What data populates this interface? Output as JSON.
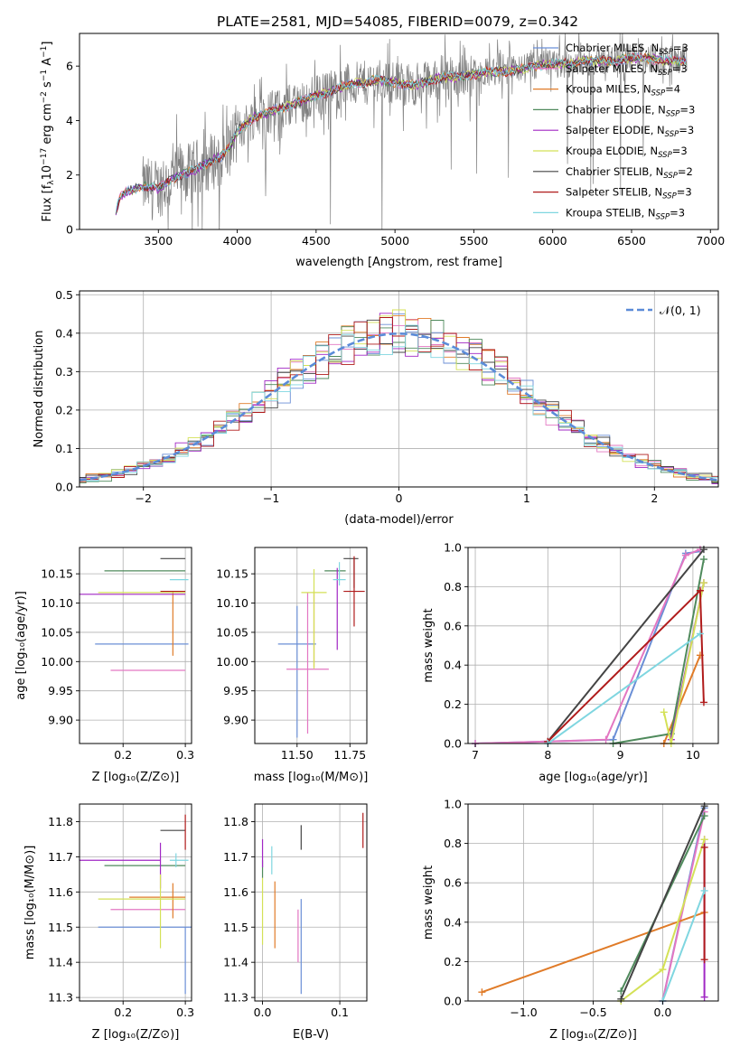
{
  "title": "PLATE=2581, MJD=54085, FIBERID=0079, z=0.342",
  "colors": {
    "Chabrier MILES": "#6b8fd6",
    "Salpeter MILES": "#e377c2",
    "Kroupa MILES": "#e07b28",
    "Chabrier ELODIE": "#4f8a5c",
    "Salpeter ELODIE": "#a127c4",
    "Kroupa ELODIE": "#d4e157",
    "Chabrier STELIB": "#444444",
    "Salpeter STELIB": "#b01b1b",
    "Kroupa STELIB": "#7fd6e0",
    "data": "#808080",
    "normal": "#5b8bd8"
  },
  "chart_data": [
    {
      "type": "line",
      "id": "spectrum",
      "xlabel": "wavelength [Angstrom, rest frame]",
      "ylabel": "Flux [f_λ 10^-17 erg cm^-2 s^-1 A^-1]",
      "xlim": [
        3000,
        7050
      ],
      "ylim": [
        0,
        7.2
      ],
      "xticks": [
        3500,
        4000,
        4500,
        5000,
        5500,
        6000,
        6500,
        7000
      ],
      "yticks": [
        0,
        2,
        4,
        6
      ],
      "grid": false,
      "legend_position": "top-right",
      "legend": [
        {
          "label": "Chabrier MILES, N",
          "sub": "SSP",
          "suffix": "=3",
          "model": "Chabrier MILES"
        },
        {
          "label": "Salpeter MILES, N",
          "sub": "SSP",
          "suffix": "=3",
          "model": "Salpeter MILES"
        },
        {
          "label": "Kroupa MILES, N",
          "sub": "SSP",
          "suffix": "=4",
          "model": "Kroupa MILES"
        },
        {
          "label": "Chabrier ELODIE, N",
          "sub": "SSP",
          "suffix": "=3",
          "model": "Chabrier ELODIE"
        },
        {
          "label": "Salpeter ELODIE, N",
          "sub": "SSP",
          "suffix": "=3",
          "model": "Salpeter ELODIE"
        },
        {
          "label": "Kroupa ELODIE, N",
          "sub": "SSP",
          "suffix": "=3",
          "model": "Kroupa ELODIE"
        },
        {
          "label": "Chabrier STELIB, N",
          "sub": "SSP",
          "suffix": "=2",
          "model": "Chabrier STELIB"
        },
        {
          "label": "Salpeter STELIB, N",
          "sub": "SSP",
          "suffix": "=3",
          "model": "Salpeter STELIB"
        },
        {
          "label": "Kroupa STELIB, N",
          "sub": "SSP",
          "suffix": "=3",
          "model": "Kroupa STELIB"
        }
      ],
      "model_continuum": {
        "x": [
          3200,
          3260,
          3300,
          3400,
          3500,
          3600,
          3700,
          3800,
          3900,
          3950,
          4000,
          4100,
          4200,
          4300,
          4400,
          4500,
          4600,
          4700,
          4800,
          4900,
          5000,
          5100,
          5200,
          5300,
          5400,
          5500,
          5600,
          5700,
          5800,
          5900,
          6000,
          6100,
          6200,
          6300,
          6400,
          6500,
          6600,
          6700,
          6850
        ],
        "y": [
          0,
          1.2,
          1.4,
          1.6,
          1.5,
          1.9,
          2.1,
          2.4,
          2.7,
          3.0,
          3.6,
          4.1,
          4.3,
          4.5,
          4.7,
          4.9,
          5.1,
          5.3,
          5.4,
          5.5,
          5.4,
          5.3,
          5.4,
          5.6,
          5.6,
          5.7,
          5.8,
          5.8,
          5.9,
          6.0,
          6.1,
          6.1,
          6.2,
          6.2,
          6.2,
          6.3,
          6.3,
          6.2,
          6.2
        ]
      },
      "data_range": [
        3400,
        6850
      ]
    },
    {
      "type": "line",
      "id": "residuals",
      "xlabel": "(data-model)/error",
      "ylabel": "Normed distribution",
      "xlim": [
        -2.5,
        2.5
      ],
      "ylim": [
        0,
        0.51
      ],
      "xticks": [
        -2,
        -1,
        0,
        1,
        2
      ],
      "yticks": [
        0.0,
        0.1,
        0.2,
        0.3,
        0.4,
        0.5
      ],
      "grid": true,
      "legend_position": "top-right",
      "legend": [
        {
          "label": "𝒩(0, 1)"
        }
      ],
      "bin_width": 0.1
    },
    {
      "type": "scatter",
      "id": "age-vs-Z",
      "xlabel": "Z [log10(Z/Z⊙)]",
      "ylabel": "age  [log10(age/yr)]",
      "xlim": [
        0.13,
        0.31
      ],
      "ylim": [
        9.86,
        10.195
      ],
      "xticks": [
        0.2,
        0.3
      ],
      "yticks": [
        9.9,
        9.95,
        10.0,
        10.05,
        10.1,
        10.15
      ],
      "grid": true,
      "points": [
        {
          "model": "Chabrier MILES",
          "x": 0.255,
          "xerr": [
            0.1,
            0.05
          ],
          "y": 10.03,
          "yerr": [
            0,
            0
          ]
        },
        {
          "model": "Salpeter MILES",
          "x": 0.24,
          "xerr": [
            0.06,
            0.06
          ],
          "y": 9.985,
          "yerr": [
            0,
            0
          ]
        },
        {
          "model": "Kroupa MILES",
          "x": 0.28,
          "xerr": [
            0.0,
            0.0
          ],
          "y": 10.06,
          "yerr": [
            0.05,
            0.06
          ]
        },
        {
          "model": "Chabrier ELODIE",
          "x": 0.24,
          "xerr": [
            0.07,
            0.06
          ],
          "y": 10.155,
          "yerr": [
            0.0,
            0.0
          ]
        },
        {
          "model": "Salpeter ELODIE",
          "x": 0.2,
          "xerr": [
            0.1,
            0.1
          ],
          "y": 10.115,
          "yerr": [
            0,
            0
          ]
        },
        {
          "model": "Kroupa ELODIE",
          "x": 0.23,
          "xerr": [
            0.07,
            0.07
          ],
          "y": 10.118,
          "yerr": [
            0,
            0
          ]
        },
        {
          "model": "Chabrier STELIB",
          "x": 0.28,
          "xerr": [
            0.02,
            0.02
          ],
          "y": 10.176,
          "yerr": [
            0,
            0
          ]
        },
        {
          "model": "Salpeter STELIB",
          "x": 0.28,
          "xerr": [
            0.02,
            0.02
          ],
          "y": 10.12,
          "yerr": [
            0.0,
            0.0
          ]
        },
        {
          "model": "Kroupa STELIB",
          "x": 0.285,
          "xerr": [
            0.01,
            0.02
          ],
          "y": 10.14,
          "yerr": [
            0,
            0
          ]
        }
      ]
    },
    {
      "type": "scatter",
      "id": "age-vs-mass",
      "xlabel": "mass [log10(M/M⊙)]",
      "ylabel": "",
      "xlim": [
        11.3,
        11.83
      ],
      "ylim": [
        9.86,
        10.195
      ],
      "xticks": [
        11.5,
        11.75
      ],
      "yticks": [
        9.9,
        9.95,
        10.0,
        10.05,
        10.1,
        10.15
      ],
      "grid": true,
      "points": [
        {
          "model": "Chabrier MILES",
          "x": 11.5,
          "xerr": [
            0.09,
            0.09
          ],
          "y": 10.03,
          "yerr": [
            0.16,
            0.065
          ]
        },
        {
          "model": "Salpeter MILES",
          "x": 11.55,
          "xerr": [
            0.1,
            0.1
          ],
          "y": 9.987,
          "yerr": [
            0.11,
            0.13
          ]
        },
        {
          "model": "Kroupa MILES",
          "x": 11.58,
          "xerr": [
            0,
            0
          ],
          "y": 10.06,
          "yerr": [
            0.07,
            0.06
          ]
        },
        {
          "model": "Chabrier ELODIE",
          "x": 11.68,
          "xerr": [
            0.05,
            0.05
          ],
          "y": 10.155,
          "yerr": [
            0,
            0
          ]
        },
        {
          "model": "Salpeter ELODIE",
          "x": 11.69,
          "xerr": [
            0,
            0
          ],
          "y": 10.1,
          "yerr": [
            0.08,
            0.06
          ]
        },
        {
          "model": "Kroupa ELODIE",
          "x": 11.58,
          "xerr": [
            0.06,
            0.06
          ],
          "y": 10.118,
          "yerr": [
            0.13,
            0.04
          ]
        },
        {
          "model": "Chabrier STELIB",
          "x": 11.77,
          "xerr": [
            0.05,
            0.02
          ],
          "y": 10.176,
          "yerr": [
            0.05,
            0
          ]
        },
        {
          "model": "Salpeter STELIB",
          "x": 11.77,
          "xerr": [
            0.05,
            0.05
          ],
          "y": 10.12,
          "yerr": [
            0.06,
            0.06
          ]
        },
        {
          "model": "Kroupa STELIB",
          "x": 11.7,
          "xerr": [
            0.03,
            0.03
          ],
          "y": 10.14,
          "yerr": [
            0.01,
            0.03
          ]
        }
      ]
    },
    {
      "type": "line",
      "id": "massweight-vs-age",
      "xlabel": "age  [log10(age/yr)]",
      "ylabel": "mass weight",
      "xlim": [
        6.9,
        10.35
      ],
      "ylim": [
        0,
        1.0
      ],
      "xticks": [
        7,
        8,
        9,
        10
      ],
      "yticks": [
        0.0,
        0.2,
        0.4,
        0.6,
        0.8,
        1.0
      ],
      "grid": true,
      "series": [
        {
          "model": "Chabrier MILES",
          "x": [
            7.0,
            8.0,
            8.9,
            9.9,
            10.1
          ],
          "y": [
            0.0,
            0.01,
            0.02,
            0.97,
            0.98
          ]
        },
        {
          "model": "Salpeter MILES",
          "x": [
            7.0,
            8.0,
            8.8,
            9.9,
            10.1
          ],
          "y": [
            0.0,
            0.01,
            0.02,
            0.96,
            0.99
          ]
        },
        {
          "model": "Kroupa MILES",
          "x": [
            9.6,
            10.1
          ],
          "y": [
            0.0,
            0.45
          ]
        },
        {
          "model": "Chabrier ELODIE",
          "x": [
            8.9,
            9.7,
            10.15
          ],
          "y": [
            0.0,
            0.05,
            0.94
          ]
        },
        {
          "model": "Salpeter ELODIE",
          "x": [
            9.7,
            10.15
          ],
          "y": [
            0.02,
            0.82
          ]
        },
        {
          "model": "Kroupa ELODIE",
          "x": [
            9.6,
            9.7,
            10.15
          ],
          "y": [
            0.16,
            0.0,
            0.82
          ]
        },
        {
          "model": "Chabrier STELIB",
          "x": [
            8.0,
            10.15
          ],
          "y": [
            0.01,
            0.99
          ]
        },
        {
          "model": "Salpeter STELIB",
          "x": [
            8.0,
            10.1,
            10.15
          ],
          "y": [
            0.01,
            0.78,
            0.21
          ]
        },
        {
          "model": "Kroupa STELIB",
          "x": [
            8.0,
            10.1
          ],
          "y": [
            0.0,
            0.56
          ]
        }
      ]
    },
    {
      "type": "scatter",
      "id": "mass-vs-Z",
      "xlabel": "Z [log10(Z/Z⊙)]",
      "ylabel": "mass [log10(M/M⊙)]",
      "xlim": [
        0.13,
        0.31
      ],
      "ylim": [
        11.29,
        11.85
      ],
      "xticks": [
        0.2,
        0.3
      ],
      "yticks": [
        11.3,
        11.4,
        11.5,
        11.6,
        11.7,
        11.8
      ],
      "grid": true,
      "points": [
        {
          "model": "Chabrier MILES",
          "x": 0.3,
          "xerr": [
            0.14,
            0.01
          ],
          "y": 11.5,
          "yerr": [
            0.19,
            0.0
          ]
        },
        {
          "model": "Salpeter MILES",
          "x": 0.24,
          "xerr": [
            0.06,
            0.06
          ],
          "y": 11.55,
          "yerr": [
            0,
            0
          ]
        },
        {
          "model": "Kroupa MILES",
          "x": 0.28,
          "xerr": [
            0.07,
            0.02
          ],
          "y": 11.585,
          "yerr": [
            0.06,
            0.04
          ]
        },
        {
          "model": "Chabrier ELODIE",
          "x": 0.24,
          "xerr": [
            0.07,
            0.06
          ],
          "y": 11.675,
          "yerr": [
            0,
            0
          ]
        },
        {
          "model": "Salpeter ELODIE",
          "x": 0.26,
          "xerr": [
            0.13,
            0.0
          ],
          "y": 11.69,
          "yerr": [
            0.08,
            0.05
          ]
        },
        {
          "model": "Kroupa ELODIE",
          "x": 0.26,
          "xerr": [
            0.1,
            0.04
          ],
          "y": 11.58,
          "yerr": [
            0.14,
            0.07
          ]
        },
        {
          "model": "Chabrier STELIB",
          "x": 0.28,
          "xerr": [
            0.02,
            0.02
          ],
          "y": 11.775,
          "yerr": [
            0,
            0
          ]
        },
        {
          "model": "Salpeter STELIB",
          "x": 0.3,
          "xerr": [
            0.0,
            0.0
          ],
          "y": 11.77,
          "yerr": [
            0.05,
            0.05
          ]
        },
        {
          "model": "Kroupa STELIB",
          "x": 0.285,
          "xerr": [
            0.01,
            0.02
          ],
          "y": 11.69,
          "yerr": [
            0.02,
            0.02
          ]
        }
      ]
    },
    {
      "type": "scatter",
      "id": "mass-vs-EBV",
      "xlabel": "E(B-V)",
      "ylabel": "",
      "xlim": [
        -0.01,
        0.135
      ],
      "ylim": [
        11.29,
        11.85
      ],
      "xticks": [
        0.0,
        0.1
      ],
      "yticks": [
        11.3,
        11.4,
        11.5,
        11.6,
        11.7,
        11.8
      ],
      "grid": true,
      "points": [
        {
          "model": "Chabrier MILES",
          "x": 0.05,
          "y": 11.5,
          "yerr": [
            0.19,
            0.08
          ]
        },
        {
          "model": "Salpeter MILES",
          "x": 0.046,
          "y": 11.5,
          "yerr": [
            0.1,
            0.05
          ]
        },
        {
          "model": "Kroupa MILES",
          "x": 0.016,
          "y": 11.58,
          "yerr": [
            0.14,
            0.05
          ]
        },
        {
          "model": "Chabrier ELODIE",
          "x": 0.0,
          "y": 11.67,
          "yerr": [
            0.03,
            0.02
          ]
        },
        {
          "model": "Salpeter ELODIE",
          "x": 0.0,
          "y": 11.7,
          "yerr": [
            0.03,
            0.05
          ]
        },
        {
          "model": "Kroupa ELODIE",
          "x": 0.0,
          "y": 11.55,
          "yerr": [
            0.1,
            0.09
          ]
        },
        {
          "model": "Chabrier STELIB",
          "x": 0.05,
          "y": 11.75,
          "yerr": [
            0.03,
            0.04
          ]
        },
        {
          "model": "Salpeter STELIB",
          "x": 0.13,
          "y": 11.775,
          "yerr": [
            0.05,
            0.05
          ]
        },
        {
          "model": "Kroupa STELIB",
          "x": 0.012,
          "y": 11.69,
          "yerr": [
            0.04,
            0.04
          ]
        }
      ]
    },
    {
      "type": "line",
      "id": "massweight-vs-Z",
      "xlabel": "Z [log10(Z/Z⊙)]",
      "ylabel": "mass weight",
      "xlim": [
        -1.4,
        0.4
      ],
      "ylim": [
        0,
        1.0
      ],
      "xticks": [
        -1.0,
        -0.5,
        0.0
      ],
      "yticks": [
        0.0,
        0.2,
        0.4,
        0.6,
        0.8,
        1.0
      ],
      "grid": true,
      "series": [
        {
          "model": "Chabrier MILES",
          "x": [
            0.0,
            0.3
          ],
          "y": [
            0.0,
            0.98
          ]
        },
        {
          "model": "Salpeter MILES",
          "x": [
            0.0,
            0.3
          ],
          "y": [
            0.0,
            0.96
          ]
        },
        {
          "model": "Kroupa MILES",
          "x": [
            -1.3,
            0.3
          ],
          "y": [
            0.045,
            0.45
          ]
        },
        {
          "model": "Chabrier ELODIE",
          "x": [
            -0.3,
            0.3
          ],
          "y": [
            0.05,
            0.94
          ]
        },
        {
          "model": "Salpeter ELODIE",
          "x": [
            0.3,
            0.3
          ],
          "y": [
            0.02,
            0.82
          ]
        },
        {
          "model": "Kroupa ELODIE",
          "x": [
            -0.3,
            0.0,
            0.3
          ],
          "y": [
            0.0,
            0.16,
            0.82
          ]
        },
        {
          "model": "Chabrier STELIB",
          "x": [
            -0.3,
            0.3
          ],
          "y": [
            0.01,
            0.99
          ]
        },
        {
          "model": "Salpeter STELIB",
          "x": [
            0.3,
            0.3
          ],
          "y": [
            0.21,
            0.78
          ]
        },
        {
          "model": "Kroupa STELIB",
          "x": [
            0.0,
            0.3
          ],
          "y": [
            0.0,
            0.56
          ]
        }
      ]
    }
  ]
}
